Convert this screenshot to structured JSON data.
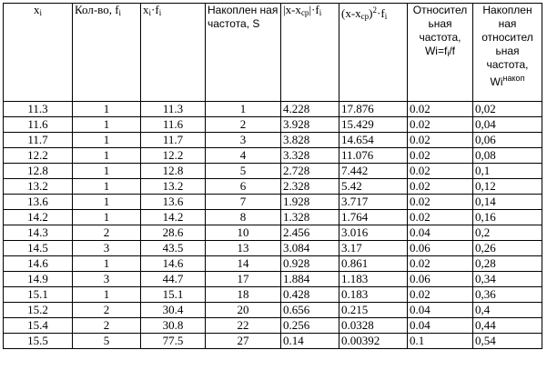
{
  "headers": {
    "xi": "x",
    "xi_sub": "i",
    "count": "Кол-во, f",
    "count_sub": "i",
    "xf_x": "x",
    "xf_x_sub": "i",
    "xf_dot": "·f",
    "xf_f_sub": "i",
    "cumfreq": "Накоплен ная частота, S",
    "absdev_main": "|x-x",
    "absdev_sub": "ср",
    "absdev_end": "|·f",
    "absdev_end_sub": "i",
    "sqdev_main": "(x-x",
    "sqdev_sub": "ср",
    "sqdev_close": ")",
    "sqdev_sup": "2",
    "sqdev_end": "·f",
    "sqdev_end_sub": "i",
    "relfreq_text": "Относител ьная частота, Wi=f",
    "relfreq_sub": "i",
    "relfreq_end": "/f",
    "cumrel_text": "Накоплен ная относител ьная частота, Wi",
    "cumrel_sup": "накоп"
  },
  "rows": [
    [
      "11.3",
      "1",
      "11.3",
      "1",
      "4.228",
      "17.876",
      "0.02",
      "0,02"
    ],
    [
      "11.6",
      "1",
      "11.6",
      "2",
      "3.928",
      "15.429",
      "0.02",
      "0,04"
    ],
    [
      "11.7",
      "1",
      "11.7",
      "3",
      "3.828",
      "14.654",
      "0.02",
      "0,06"
    ],
    [
      "12.2",
      "1",
      "12.2",
      "4",
      "3.328",
      "11.076",
      "0.02",
      "0,08"
    ],
    [
      "12.8",
      "1",
      "12.8",
      "5",
      "2.728",
      "7.442",
      "0.02",
      "0,1"
    ],
    [
      "13.2",
      "1",
      "13.2",
      "6",
      "2.328",
      "5.42",
      "0.02",
      "0,12"
    ],
    [
      "13.6",
      "1",
      "13.6",
      "7",
      "1.928",
      "3.717",
      "0.02",
      "0,14"
    ],
    [
      "14.2",
      "1",
      "14.2",
      "8",
      "1.328",
      "1.764",
      "0.02",
      "0,16"
    ],
    [
      "14.3",
      "2",
      "28.6",
      "10",
      "2.456",
      "3.016",
      "0.04",
      "0,2"
    ],
    [
      "14.5",
      "3",
      "43.5",
      "13",
      "3.084",
      "3.17",
      "0.06",
      "0,26"
    ],
    [
      "14.6",
      "1",
      "14.6",
      "14",
      "0.928",
      "0.861",
      "0.02",
      "0,28"
    ],
    [
      "14.9",
      "3",
      "44.7",
      "17",
      "1.884",
      "1.183",
      "0.06",
      "0,34"
    ],
    [
      "15.1",
      "1",
      "15.1",
      "18",
      "0.428",
      "0.183",
      "0.02",
      "0,36"
    ],
    [
      "15.2",
      "2",
      "30.4",
      "20",
      "0.656",
      "0.215",
      "0.04",
      "0,4"
    ],
    [
      "15.4",
      "2",
      "30.8",
      "22",
      "0.256",
      "0.0328",
      "0.04",
      "0,44"
    ],
    [
      "15.5",
      "5",
      "77.5",
      "27",
      "0.14",
      "0.00392",
      "0.1",
      "0,54"
    ]
  ]
}
